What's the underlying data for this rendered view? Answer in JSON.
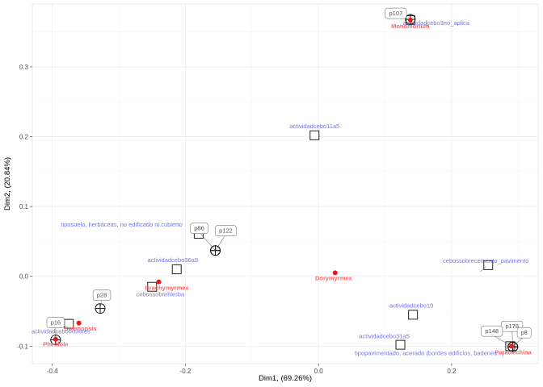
{
  "chart_data": {
    "type": "scatter",
    "xlabel": "Dim1, (69.26%)",
    "ylabel": "Dim2, (20.84%)",
    "xlim": [
      -0.43,
      0.33
    ],
    "ylim": [
      -0.125,
      0.39
    ],
    "x_ticks": [
      -0.4,
      -0.2,
      0.0,
      0.2
    ],
    "x_tick_labels": [
      "-0.4",
      "-0.2",
      "0.0",
      "0.2"
    ],
    "y_ticks": [
      -0.1,
      0.0,
      0.1,
      0.2,
      0.3
    ],
    "y_tick_labels": [
      "-0.1",
      "0.0",
      "0.1",
      "0.2",
      "0.3"
    ],
    "grid": true,
    "variable_categories": [
      {
        "label": "actividadcebo11a5",
        "x": -0.006,
        "y": 0.202
      },
      {
        "label": "tiposuelo, herbáceas, no edificado ni cubierto",
        "x": -0.18,
        "y": 0.061
      },
      {
        "label": "actividadcebo36a9",
        "x": -0.213,
        "y": 0.01
      },
      {
        "label": "cebossobrehierba",
        "x": -0.25,
        "y": -0.015
      },
      {
        "label": "cebossobrecemento_pavimento",
        "x": 0.255,
        "y": 0.016
      },
      {
        "label": "actividadcebo10",
        "x": 0.142,
        "y": -0.055
      },
      {
        "label": "actividadcebo31a5",
        "x": 0.123,
        "y": -0.098
      },
      {
        "label": "tipopavimentado, acerado (bordes edificios, badenes...)",
        "x": 0.288,
        "y": -0.1
      },
      {
        "label": "actividadcebo0o9ores",
        "x": -0.375,
        "y": -0.068
      },
      {
        "label": "actividadcebo3no_aplica",
        "x": 0.138,
        "y": 0.367
      }
    ],
    "species": [
      {
        "label": "Monomorium",
        "x": 0.138,
        "y": 0.367
      },
      {
        "label": "Dorymyrmex",
        "x": 0.025,
        "y": 0.005
      },
      {
        "label": "Brachymyrmex",
        "x": -0.24,
        "y": -0.008
      },
      {
        "label": "Solenopsis",
        "x": -0.36,
        "y": -0.067
      },
      {
        "label": "Pheidole",
        "x": -0.395,
        "y": -0.09
      },
      {
        "label": "Paratrechina",
        "x": 0.29,
        "y": -0.1
      }
    ],
    "sites": [
      {
        "label": "p107",
        "x": 0.138,
        "y": 0.368
      },
      {
        "label": "p122",
        "x": -0.155,
        "y": 0.037
      },
      {
        "label": "p86",
        "x": -0.155,
        "y": 0.037
      },
      {
        "label": "p28",
        "x": -0.328,
        "y": -0.046
      },
      {
        "label": "p16",
        "x": -0.395,
        "y": -0.091
      },
      {
        "label": "p178",
        "x": 0.292,
        "y": -0.101
      },
      {
        "label": "p148",
        "x": 0.292,
        "y": -0.101
      },
      {
        "label": "p8",
        "x": 0.292,
        "y": -0.101
      }
    ]
  },
  "colors": {
    "variables": "#7777dd",
    "species": "#f0696b",
    "species_point": "#e41a1c",
    "sites": "#555555",
    "grid": "#ebebeb"
  }
}
